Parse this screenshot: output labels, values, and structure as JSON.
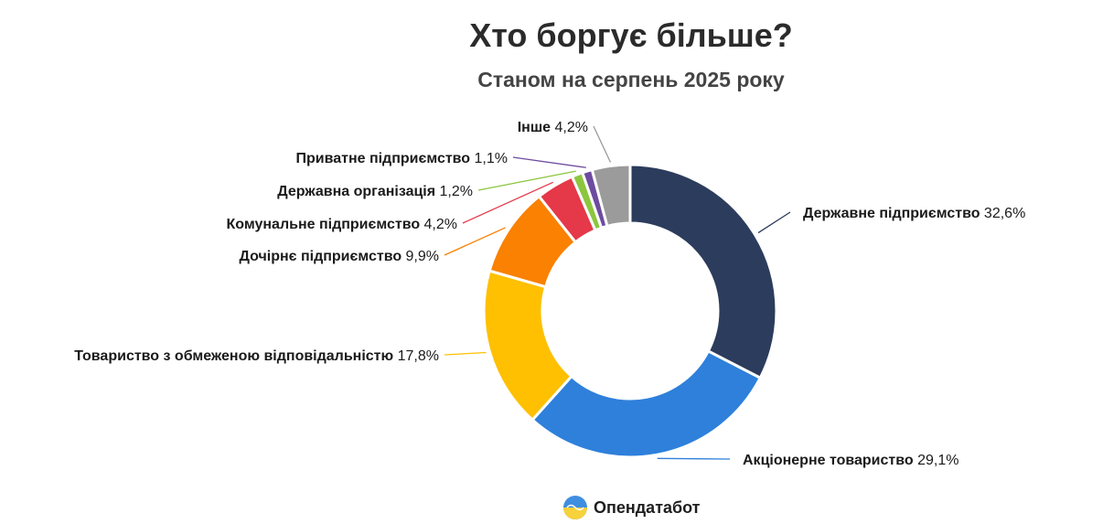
{
  "title": "Хто боргує більше?",
  "subtitle": "Станом на серпень 2025 року",
  "brand": {
    "name": "Опендатабот",
    "icon": "opendatabot-logo-icon"
  },
  "chart_data": {
    "type": "pie",
    "donut": true,
    "title": "Хто боргує більше?",
    "subtitle": "Станом на серпень 2025 року",
    "unit": "%",
    "slices": [
      {
        "label": "Державне підприємство",
        "value_text": "32,6%",
        "value": 32.6,
        "color": "#2c3c5c"
      },
      {
        "label": "Акціонерне товариство",
        "value_text": "29,1%",
        "value": 29.1,
        "color": "#2e80db"
      },
      {
        "label": "Товариство з обмеженою відповідальністю",
        "value_text": "17,8%",
        "value": 17.8,
        "color": "#fec000"
      },
      {
        "label": "Дочірнє підприємство",
        "value_text": "9,9%",
        "value": 9.9,
        "color": "#fa8101"
      },
      {
        "label": "Комунальне підприємство",
        "value_text": "4,2%",
        "value": 4.2,
        "color": "#e53848"
      },
      {
        "label": "Державна організація",
        "value_text": "1,2%",
        "value": 1.2,
        "color": "#8cc63e"
      },
      {
        "label": "Приватне підприємство",
        "value_text": "1,1%",
        "value": 1.1,
        "color": "#6d4ca0"
      },
      {
        "label": "Інше",
        "value_text": "4,2%",
        "value": 4.2,
        "color": "#9b9b9b"
      }
    ]
  }
}
